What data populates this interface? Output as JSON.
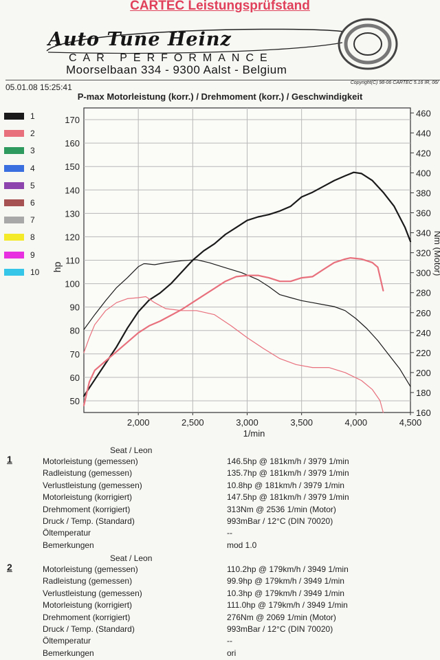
{
  "header": {
    "title": "CARTEC Leistungsprüfstand",
    "logo_name": "Auto Tune Heinz",
    "logo_sub": "CAR PERFORMANCE",
    "address": "Moorselbaan 334 - 9300 Aalst - Belgium",
    "timestamp": "05.01.08 15:25:41",
    "copyright": "Copyright(C) 98-06 CARTEC 5.16 IR, 06/"
  },
  "legend": [
    {
      "label": "1",
      "color": "#1a1a1a"
    },
    {
      "label": "2",
      "color": "#e8707c"
    },
    {
      "label": "3",
      "color": "#2e9a5e"
    },
    {
      "label": "4",
      "color": "#3a6fe0"
    },
    {
      "label": "5",
      "color": "#8e44ad"
    },
    {
      "label": "6",
      "color": "#a65252"
    },
    {
      "label": "7",
      "color": "#a8a8a8"
    },
    {
      "label": "8",
      "color": "#f5ea2a"
    },
    {
      "label": "9",
      "color": "#e830e0"
    },
    {
      "label": "10",
      "color": "#35c6e8"
    }
  ],
  "chart_data": {
    "type": "line",
    "title": "P-max Motorleistung (korr.) / Drehmoment (korr.) / Geschwindigkeit",
    "xlabel": "1/min",
    "ylabel": "hp",
    "y2label": "Nm (Motor)",
    "xlim": [
      1500,
      4500
    ],
    "ylim": [
      45,
      175
    ],
    "y2lim": [
      160,
      465
    ],
    "x_ticks": [
      2000,
      2500,
      3000,
      3500,
      4000,
      4500
    ],
    "x_tick_labels": [
      "2,000",
      "2,500",
      "3,000",
      "3,500",
      "4,000",
      "4,500"
    ],
    "y_ticks": [
      50,
      60,
      70,
      80,
      90,
      100,
      110,
      120,
      130,
      140,
      150,
      160,
      170
    ],
    "y2_ticks": [
      160,
      180,
      200,
      220,
      240,
      260,
      280,
      300,
      320,
      340,
      360,
      380,
      400,
      420,
      440,
      460
    ],
    "grid": true,
    "series": [
      {
        "name": "1",
        "axis": "hp",
        "color": "#1a1a1a",
        "width": 2.2,
        "x": [
          1500,
          1600,
          1700,
          1800,
          1900,
          2000,
          2100,
          2200,
          2300,
          2400,
          2500,
          2600,
          2700,
          2800,
          2900,
          3000,
          3100,
          3200,
          3300,
          3400,
          3500,
          3600,
          3700,
          3800,
          3900,
          3979,
          4050,
          4150,
          4250,
          4350,
          4450,
          4500
        ],
        "y": [
          52,
          59,
          66,
          73,
          81,
          88,
          93,
          96,
          100,
          105,
          110,
          114,
          117,
          121,
          124,
          127,
          128.5,
          129.5,
          131,
          133,
          137,
          139,
          141.5,
          144,
          146,
          147.5,
          147,
          144,
          139,
          133,
          124,
          118
        ]
      },
      {
        "name": "1",
        "axis": "Nm",
        "color": "#1a1a1a",
        "width": 1.2,
        "x": [
          1500,
          1600,
          1700,
          1800,
          1900,
          2000,
          2050,
          2069,
          2150,
          2250,
          2400,
          2536,
          2650,
          2800,
          2950,
          3100,
          3200,
          3300,
          3400,
          3500,
          3600,
          3700,
          3800,
          3900,
          4000,
          4100,
          4200,
          4300,
          4400,
          4500
        ],
        "y": [
          243,
          258,
          272,
          285,
          295,
          306,
          309,
          309,
          308,
          310,
          312,
          313,
          310,
          305,
          300,
          293,
          286,
          278,
          275,
          272,
          270,
          268,
          266,
          262,
          254,
          244,
          232,
          218,
          204,
          186
        ]
      },
      {
        "name": "2",
        "axis": "hp",
        "color": "#e8707c",
        "width": 2.2,
        "x": [
          1500,
          1550,
          1600,
          1700,
          1800,
          1900,
          2000,
          2100,
          2200,
          2300,
          2400,
          2500,
          2600,
          2700,
          2800,
          2900,
          3000,
          3100,
          3200,
          3300,
          3400,
          3500,
          3600,
          3700,
          3800,
          3900,
          3949,
          4050,
          4150,
          4200,
          4230,
          4250
        ],
        "y": [
          48,
          58,
          63,
          67,
          71,
          75,
          79,
          82,
          84,
          86.5,
          89,
          92,
          95,
          98,
          101,
          103,
          103.5,
          103.5,
          102.5,
          101,
          101,
          102.5,
          103,
          106,
          109,
          110.5,
          111,
          110.5,
          109,
          107,
          101,
          97
        ]
      },
      {
        "name": "2",
        "axis": "Nm",
        "color": "#e8707c",
        "width": 1.2,
        "x": [
          1500,
          1550,
          1600,
          1700,
          1800,
          1900,
          2000,
          2069,
          2150,
          2250,
          2400,
          2536,
          2700,
          2850,
          3000,
          3150,
          3300,
          3450,
          3600,
          3750,
          3900,
          4050,
          4150,
          4220,
          4250
        ],
        "y": [
          220,
          235,
          248,
          262,
          270,
          274,
          275,
          276,
          270,
          264,
          262,
          262,
          258,
          247,
          235,
          224,
          214,
          208,
          205,
          205,
          200,
          192,
          183,
          172,
          160
        ]
      }
    ]
  },
  "results": [
    {
      "number": "1",
      "vehicle": "Seat / Leon",
      "rows": [
        {
          "label": "Motorleistung (gemessen)",
          "value": "146.5hp @ 181km/h / 3979 1/min"
        },
        {
          "label": "Radleistung (gemessen)",
          "value": "135.7hp @ 181km/h / 3979 1/min"
        },
        {
          "label": "Verlustleistung (gemessen)",
          "value": "10.8hp @ 181km/h / 3979 1/min"
        },
        {
          "label": "Motorleistung (korrigiert)",
          "value": "147.5hp @ 181km/h / 3979 1/min"
        },
        {
          "label": "Drehmoment (korrigiert)",
          "value": "313Nm @ 2536 1/min (Motor)"
        },
        {
          "label": "Druck / Temp. (Standard)",
          "value": "993mBar / 12°C    (DIN 70020)"
        },
        {
          "label": "Öltemperatur",
          "value": "--"
        },
        {
          "label": "Bemerkungen",
          "value": "mod 1.0"
        }
      ]
    },
    {
      "number": "2",
      "vehicle": "Seat / Leon",
      "rows": [
        {
          "label": "Motorleistung (gemessen)",
          "value": "110.2hp @ 179km/h / 3949 1/min"
        },
        {
          "label": "Radleistung (gemessen)",
          "value": "99.9hp @ 179km/h / 3949 1/min"
        },
        {
          "label": "Verlustleistung (gemessen)",
          "value": "10.3hp @ 179km/h / 3949 1/min"
        },
        {
          "label": "Motorleistung (korrigiert)",
          "value": "111.0hp @ 179km/h / 3949 1/min"
        },
        {
          "label": "Drehmoment (korrigiert)",
          "value": "276Nm @ 2069 1/min (Motor)"
        },
        {
          "label": "Druck / Temp. (Standard)",
          "value": "993mBar / 12°C  (DIN 70020)"
        },
        {
          "label": "Öltemperatur",
          "value": "--"
        },
        {
          "label": "Bemerkungen",
          "value": "ori"
        }
      ]
    }
  ]
}
